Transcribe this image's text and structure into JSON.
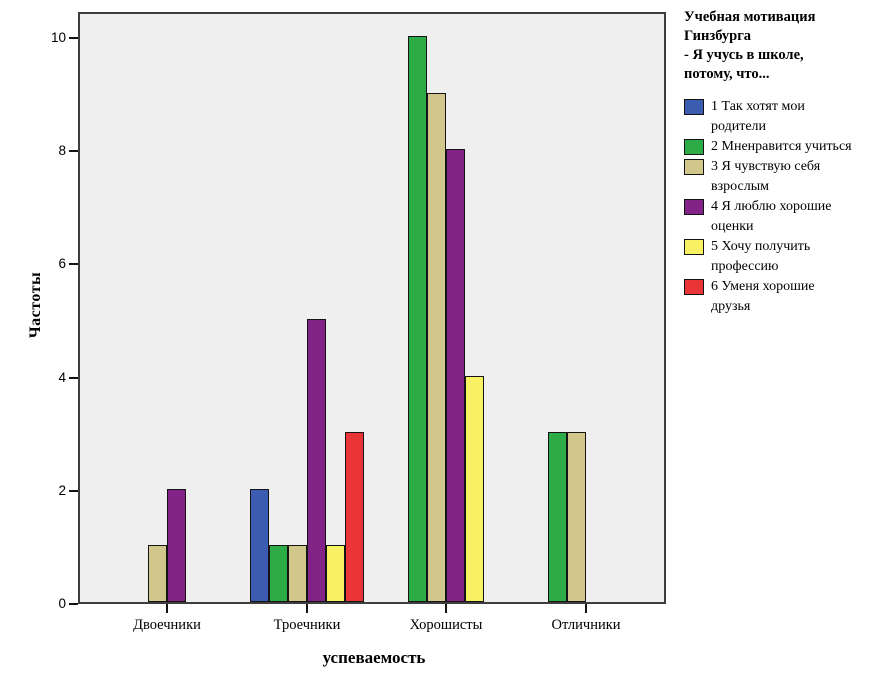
{
  "chart_data": {
    "type": "bar",
    "categories": [
      "Двоечники",
      "Троечники",
      "Хорошисты",
      "Отличники"
    ],
    "series": [
      {
        "name": "1 Так хотят мои\nродители",
        "color": "#3c5cb1",
        "values": [
          0,
          2,
          0,
          0
        ]
      },
      {
        "name": "2 Мненравится учиться",
        "color": "#2dab47",
        "values": [
          0,
          1,
          10,
          3
        ]
      },
      {
        "name": "3 Я чувствую себя\nвзрослым",
        "color": "#d2c78b",
        "values": [
          1,
          1,
          9,
          3
        ]
      },
      {
        "name": "4 Я люблю хорошие\nоценки",
        "color": "#822387",
        "values": [
          2,
          5,
          8,
          0
        ]
      },
      {
        "name": "5 Хочу получить\nпрофессию",
        "color": "#f7f163",
        "values": [
          0,
          1,
          4,
          0
        ]
      },
      {
        "name": "6 Уменя хорошие\nдрузья",
        "color": "#e93537",
        "values": [
          0,
          3,
          0,
          0
        ]
      }
    ],
    "legend_title": "Учебная мотивация\nГинзбурга\n- Я учусь в школе,\nпотому, что...",
    "legend_position": "right",
    "xlabel": "успеваемость",
    "ylabel": "Частоты",
    "ylim": [
      0,
      10
    ],
    "yticks": [
      0,
      2,
      4,
      6,
      8,
      10
    ],
    "grid": false,
    "plot_background": "#f0efef",
    "bar_outline": "#141414"
  }
}
